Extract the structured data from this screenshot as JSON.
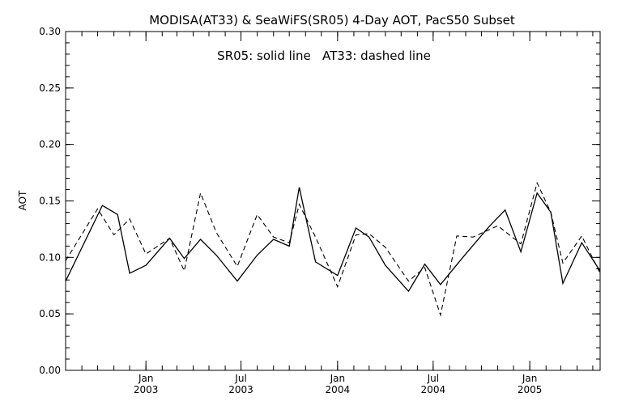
{
  "chart_data": {
    "type": "line",
    "title": "MODISA(AT33) & SeaWiFS(SR05) 4-Day AOT, PacS50 Subset",
    "annotation": "SR05: solid line   AT33: dashed line",
    "xlabel": "",
    "ylabel": "AOT",
    "xlim": [
      "2002-08-01",
      "2005-05-15"
    ],
    "ylim": [
      0.0,
      0.3
    ],
    "y_ticks": [
      "0.00",
      "0.05",
      "0.10",
      "0.15",
      "0.20",
      "0.25",
      "0.30"
    ],
    "x_ticks": [
      {
        "date": "2003-01-01",
        "month": "Jan",
        "year": "2003"
      },
      {
        "date": "2003-07-01",
        "month": "Jul",
        "year": "2003"
      },
      {
        "date": "2004-01-01",
        "month": "Jan",
        "year": "2004"
      },
      {
        "date": "2004-07-01",
        "month": "Jul",
        "year": "2004"
      },
      {
        "date": "2005-01-01",
        "month": "Jan",
        "year": "2005"
      }
    ],
    "grid": false,
    "series": [
      {
        "name": "SR05",
        "style": "solid",
        "points": [
          [
            "2002-08-01",
            0.079
          ],
          [
            "2002-10-10",
            0.146
          ],
          [
            "2002-11-08",
            0.138
          ],
          [
            "2002-12-01",
            0.086
          ],
          [
            "2003-01-01",
            0.093
          ],
          [
            "2003-02-15",
            0.117
          ],
          [
            "2003-03-15",
            0.099
          ],
          [
            "2003-04-15",
            0.116
          ],
          [
            "2003-05-15",
            0.102
          ],
          [
            "2003-06-24",
            0.079
          ],
          [
            "2003-08-01",
            0.102
          ],
          [
            "2003-09-01",
            0.116
          ],
          [
            "2003-10-01",
            0.11
          ],
          [
            "2003-10-20",
            0.162
          ],
          [
            "2003-11-20",
            0.096
          ],
          [
            "2004-01-01",
            0.084
          ],
          [
            "2004-02-05",
            0.126
          ],
          [
            "2004-03-01",
            0.118
          ],
          [
            "2004-04-01",
            0.093
          ],
          [
            "2004-05-15",
            0.07
          ],
          [
            "2004-06-15",
            0.094
          ],
          [
            "2004-07-15",
            0.076
          ],
          [
            "2004-09-01",
            0.103
          ],
          [
            "2004-10-15",
            0.127
          ],
          [
            "2004-11-15",
            0.142
          ],
          [
            "2004-12-15",
            0.105
          ],
          [
            "2005-01-15",
            0.157
          ],
          [
            "2005-02-10",
            0.14
          ],
          [
            "2005-03-05",
            0.077
          ],
          [
            "2005-04-10",
            0.113
          ],
          [
            "2005-05-15",
            0.088
          ]
        ]
      },
      {
        "name": "AT33",
        "style": "dashed",
        "points": [
          [
            "2002-08-01",
            0.097
          ],
          [
            "2002-10-01",
            0.143
          ],
          [
            "2002-11-01",
            0.12
          ],
          [
            "2002-12-01",
            0.134
          ],
          [
            "2003-01-01",
            0.103
          ],
          [
            "2003-02-15",
            0.117
          ],
          [
            "2003-03-15",
            0.088
          ],
          [
            "2003-04-15",
            0.157
          ],
          [
            "2003-05-15",
            0.122
          ],
          [
            "2003-06-24",
            0.092
          ],
          [
            "2003-08-01",
            0.138
          ],
          [
            "2003-09-01",
            0.118
          ],
          [
            "2003-10-01",
            0.113
          ],
          [
            "2003-10-20",
            0.147
          ],
          [
            "2003-11-20",
            0.118
          ],
          [
            "2004-01-01",
            0.074
          ],
          [
            "2004-02-05",
            0.12
          ],
          [
            "2004-03-01",
            0.121
          ],
          [
            "2004-04-01",
            0.109
          ],
          [
            "2004-05-15",
            0.079
          ],
          [
            "2004-06-15",
            0.091
          ],
          [
            "2004-07-15",
            0.049
          ],
          [
            "2004-08-15",
            0.119
          ],
          [
            "2004-09-15",
            0.118
          ],
          [
            "2004-11-01",
            0.128
          ],
          [
            "2004-12-15",
            0.112
          ],
          [
            "2005-01-15",
            0.166
          ],
          [
            "2005-02-10",
            0.14
          ],
          [
            "2005-03-05",
            0.095
          ],
          [
            "2005-04-10",
            0.119
          ],
          [
            "2005-05-15",
            0.086
          ]
        ]
      }
    ]
  }
}
